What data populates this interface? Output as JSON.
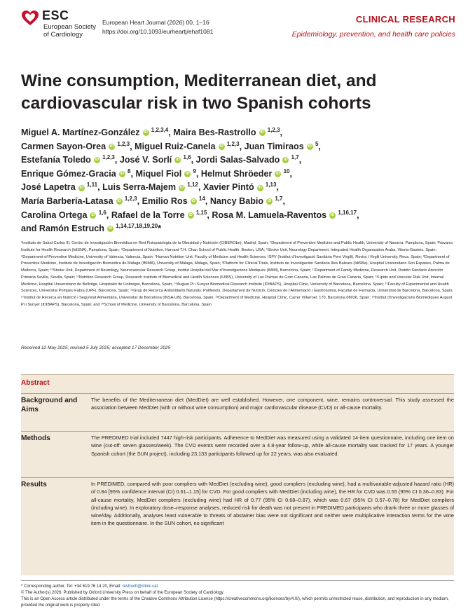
{
  "header": {
    "logo_text": "ESC",
    "society_line1": "European Society",
    "society_line2": "of Cardiology",
    "journal_line": "European Heart Journal (2026) 00, 1–16",
    "doi": "https://doi.org/10.1093/eurheartj/ehaf1081",
    "section": "CLINICAL RESEARCH",
    "subsection": "Epidemiology, prevention, and health care policies",
    "brand_color": "#b5121b"
  },
  "title_line1": "Wine consumption, Mediterranean diet, and",
  "title_line2": "cardiovascular risk in two Spanish cohorts",
  "authors": [
    {
      "name": "Miguel A. Martínez-González",
      "sup": "1,2,3,4",
      "sep": ","
    },
    {
      "name": "Maira Bes-Rastrollo",
      "sup": "1,2,3",
      "sep": ","
    },
    {
      "name": "Carmen Sayon-Orea",
      "sup": "1,2,3",
      "sep": ","
    },
    {
      "name": "Miguel Ruiz-Canela",
      "sup": "1,2,3",
      "sep": ","
    },
    {
      "name": "Juan Timiraos",
      "sup": "5",
      "sep": ","
    },
    {
      "name": "Estefanía Toledo",
      "sup": "1,2,3",
      "sep": ","
    },
    {
      "name": "José V. Sorlí",
      "sup": "1,6",
      "sep": ","
    },
    {
      "name": "Jordi Salas-Salvado",
      "sup": "1,7",
      "sep": ","
    },
    {
      "name": "Enrique Gómez-Gracia",
      "sup": "8",
      "sep": ","
    },
    {
      "name": "Miquel Fiol",
      "sup": "9",
      "sep": ","
    },
    {
      "name": "Helmut Shröeder",
      "sup": "10",
      "sep": ","
    },
    {
      "name": "José Lapetra",
      "sup": "1,11",
      "sep": ","
    },
    {
      "name": "Luis Serra-Majem",
      "sup": "1,12",
      "sep": ","
    },
    {
      "name": "Xavier Pintó",
      "sup": "1,13",
      "sep": ","
    },
    {
      "name": "María Barbería-Latasa",
      "sup": "1,2,3",
      "sep": ","
    },
    {
      "name": "Emilio Ros",
      "sup": "14",
      "sep": ","
    },
    {
      "name": "Nancy Babio",
      "sup": "1,7",
      "sep": ","
    },
    {
      "name": "Carolina Ortega",
      "sup": "1,6",
      "sep": ","
    },
    {
      "name": "Rafael de la Torre",
      "sup": "1,15",
      "sep": ","
    },
    {
      "name": "Rosa M. Lamuela-Raventos",
      "sup": "1,16,17",
      "sep": ","
    },
    {
      "name": "and Ramón Estruch",
      "sup": "1,14,17,18,19,20",
      "sep": "*"
    }
  ],
  "author_line_breaks": [
    2,
    5,
    8,
    11,
    14,
    17,
    20
  ],
  "affiliations": "¹Instituto de Salud Carlos III, Centro de Investigación Biomédica en Red Fisiopatología de la Obesidad y Nutrición (CIBERObn), Madrid, Spain; ²Department of Preventive Medicine and Public Health, University of Navarra, Pamplona, Spain; ³Navarra Institute for Health Research (IdiSNA), Pamplona, Spain; ⁴Department of Nutrition, Harvard T.H. Chan School of Public Health, Boston, USA; ⁵Stroke Unit, Neurology Department, Integrated Health Organization Araba, Vitoria-Gasteiz, Spain; ⁶Department of Preventive Medicine, University of Valencia, Valencia, Spain; ⁷Human Nutrition Unit, Faculty of Medicine and Health Sciences, ISPV (Institut d’Investigació Sanitària Pere Virgili), Rovira i Virgili University, Reus, Spain; ⁸Department of Preventive Medicine, Instituto de Investigación Biomédica de Málaga (IBIMA), University of Málaga, Málaga, Spain; ⁹Platform for Clinical Trials, Instituto de Investigación Sanitaria Illes Balears (IdiSBa), Hospital Universitario Son Espases, Palma de Mallorca, Spain; ¹⁰Stroke Unit, Department of Neurology, Neurovascular Research Group, Institut Hospital del Mar d’Investigacions Mèdiques (IMIM), Barcelona, Spain; ¹¹Department of Family Medicine, Research Unit, Distrito Sanitario Atención Primaria Sevilla, Sevilla, Spain; ¹²Nutrition Research Group, Research Institute of Biomedical and Health Sciences (IUIBS), University of Las Palmas de Gran Canaria, Las Palmas de Gran Canaria, Spain; ¹³Lipids and Vascular Risk Unit, Internal Medicine, Hospital Universitario de Bellvitge, Hospitalet de Llobregat, Barcelona, Spain; ¹⁴August Pi i Sunyer Biomedical Research Institute (IDIBAPS), Hospital Clinic, University of Barcelona, Barcelona, Spain; ¹⁵Faculty of Experimental and Health Sciences, Universitat Pompeu Fabra (UPF), Barcelona, Spain; ¹⁶Grup de Recerca Antioxidants Naturals: Polifenols, Departament de Nutrició, Ciències de l’Alimentació i Gastronomia, Facultat de Farmacia, Universitat de Barcelona, Barcelona, Spain; ¹⁷Institut de Recerca en Nutrició i Seguretat Alimentària, Universitat de Barcelona (INSA-UB), Barcelona, Spain; ¹⁸Department of Medicine, Hospital Clínic, Carrer Villarroel, 170, Barcelona 08036, Spain; ¹⁹Institut d’Investigacions Biomèdiques August Pi i Sunyer (IDIBAPS), Barcelona, Spain; and ²⁰School of Medicine, University of Barcelona, Barcelona, Spain",
  "received": "Received 12 May 2025; revised 5 July 2025; accepted 17 December 2025",
  "abstract": {
    "heading": "Abstract",
    "sections": [
      {
        "label": "Background and Aims",
        "text": "The benefits of the Mediterranean diet (MedDiet) are well established. However, one component, wine, remains controversial. This study assessed the association between MedDiet (with or without wine consumption) and major cardiovascular disease (CVD) or all-cause mortality."
      },
      {
        "label": "Methods",
        "text": "The PREDIMED trial included 7447 high-risk participants. Adherence to MedDiet was measured using a validated 14-item questionnaire, including one item on wine (cut-off: seven glasses/week). The CVD events were recorded over a 4.8-year follow-up, while all-cause mortality was tracked for 17 years. A younger Spanish cohort (the SUN project), including 23,133 participants followed up for 22 years, was also evaluated."
      },
      {
        "label": "Results",
        "text": "In PREDIMED, compared with poor compliers with MedDiet (excluding wine), good compliers (excluding wine), had a multivariable-adjusted hazard ratio (HR) of 0.84 [95% confidence interval (CI) 0.61–1.15] for CVD. For good compliers with MedDiet (including wine), the HR for CVD was 0.55 (95% CI 0.36–0.83). For all-cause mortality, MedDiet compliers (excluding wine) had HR of 0.77 (95% CI 0.68–0.87), which was 0.67 (95% CI 0.57–0.78) for MedDiet compliers (including wine). In exploratory dose–response analyses, reduced risk for death was not present in PREDIMED participants who drank three or more glasses of wine/day. Additionally, analyses least vulnerable to threats of abstainer bias were not significant and neither were multiplicative interaction terms for the wine item in the questionnaire. In the SUN cohort, no significant"
      }
    ]
  },
  "footer": {
    "corresponding_prefix": "* Corresponding author. Tel: +34 619 76 14 20, Email: ",
    "email": "restruch@clinic.cat",
    "copyright": "© The Author(s) 2026. Published by Oxford University Press on behalf of the European Society of Cardiology.",
    "license": "This is an Open Access article distributed under the terms of the Creative Commons Attribution License (https://creativecommons.org/licenses/by/4.0/), which permits unrestricted reuse, distribution, and reproduction in any medium, provided the original work is properly cited."
  }
}
